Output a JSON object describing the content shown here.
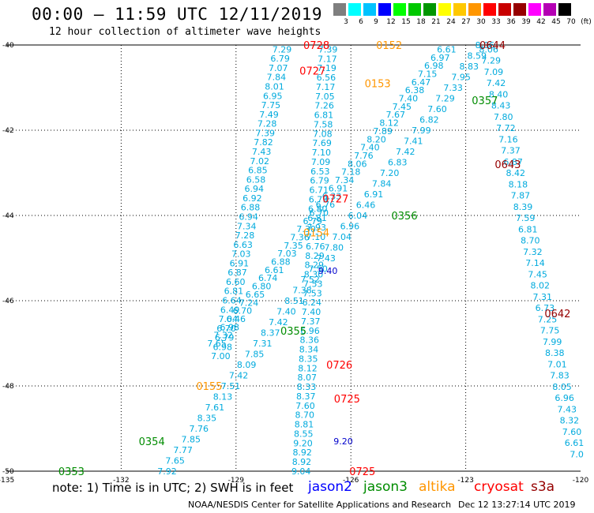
{
  "title": "00:00 – 11:59 UTC 12/11/2019",
  "subtitle": "12 hour collection of altimeter wave heights",
  "legend": {
    "labels": [
      "3",
      "6",
      "9",
      "12",
      "15",
      "18",
      "21",
      "24",
      "27",
      "30",
      "33",
      "36",
      "39",
      "42",
      "45",
      "70",
      "(ft)"
    ],
    "colors": [
      "#7f7f7f",
      "#00ffff",
      "#00c3ff",
      "#0000ff",
      "#00ff00",
      "#00c800",
      "#009600",
      "#ffff00",
      "#ffc800",
      "#ff9600",
      "#ff0000",
      "#c80000",
      "#960000",
      "#ff00ff",
      "#b400b4",
      "#000000"
    ]
  },
  "note": "note: 1) Time is in UTC; 2) SWH is in feet",
  "satellites": [
    {
      "name": "jason2",
      "color": "#0000ff"
    },
    {
      "name": "jason3",
      "color": "#008c00"
    },
    {
      "name": "altika",
      "color": "#ff9600"
    },
    {
      "name": "cryosat",
      "color": "#ff0000"
    },
    {
      "name": "s3a",
      "color": "#960000"
    }
  ],
  "credit": "NOAA/NESDIS Center for Satellite Applications and Research",
  "timestamp": "Dec 12 13:27:14 UTC 2019",
  "chart_data": {
    "type": "scatter",
    "title": "00:00 – 11:59 UTC 12/11/2019",
    "subtitle": "12 hour collection of altimeter wave heights",
    "xlim": [
      -135,
      -120
    ],
    "ylim": [
      -50,
      -40
    ],
    "x_ticks": [
      -135,
      -132,
      -129,
      -126,
      -123,
      -120
    ],
    "y_ticks": [
      -40,
      -42,
      -44,
      -46,
      -48,
      -50
    ],
    "grid": true,
    "units": "ft",
    "tracks": [
      {
        "satellite": "cryosat",
        "color": "#00aadd",
        "start": [
          -127.8,
          -40.1
        ],
        "end": [
          -129.4,
          -47.3
        ],
        "values": [
          "7.29",
          "6.79",
          "7.07",
          "7.84",
          "8.01",
          "6.95",
          "7.75",
          "7.49",
          "7.28",
          "7.39",
          "7.82",
          "7.43",
          "7.02",
          "6.85",
          "6.58",
          "6.94",
          "6.92",
          "6.88",
          "6.94",
          "7.34",
          "7.28",
          "6.63",
          "7.03",
          "6.91",
          "6.87",
          "6.60",
          "6.81",
          "6.64",
          "6.49",
          "7.04",
          "6.70",
          "6.79",
          "6.98",
          "7.00"
        ]
      },
      {
        "satellite": "altika",
        "color": "#00aadd",
        "start": [
          -126.6,
          -40.1
        ],
        "end": [
          -127.3,
          -50.0
        ],
        "values": [
          "7.39",
          "7.17",
          "7.19",
          "6.56",
          "7.17",
          "7.05",
          "7.26",
          "6.81",
          "7.58",
          "7.08",
          "7.69",
          "7.10",
          "7.09",
          "6.53",
          "6.79",
          "6.71",
          "6.79",
          "6.80",
          "6.81",
          "7.93",
          "7.10",
          "6.76",
          "8.29",
          "8.29",
          "8.30",
          "7.53",
          "7.53",
          "6.24",
          "7.40",
          "7.37",
          "6.96",
          "8.36",
          "8.34",
          "8.35",
          "8.12",
          "8.07",
          "8.33",
          "8.37",
          "7.60",
          "8.70",
          "8.81",
          "8.55",
          "9.20",
          "8.92",
          "8.92",
          "9.04"
        ]
      },
      {
        "satellite": "s3a",
        "color": "#00aadd",
        "start": [
          -123.5,
          -40.1
        ],
        "end": [
          -129.5,
          -47.0
        ],
        "values": [
          "6.61",
          "6.97",
          "6.98",
          "7.15",
          "6.47",
          "6.38",
          "7.40",
          "7.45",
          "7.67",
          "8.12",
          "7.89",
          "8.20",
          "7.40",
          "7.76",
          "8.06",
          "7.18",
          "7.34",
          "6.91",
          "6.33",
          "6.76",
          "6.70",
          "6.79",
          "7.30",
          "7.36",
          "7.35",
          "7.03",
          "6.88",
          "6.61",
          "6.74",
          "6.80",
          "6.65",
          "7.24",
          "6.70",
          "6.46",
          "6.98",
          "7.32",
          "7.65"
        ]
      },
      {
        "satellite": "s3a",
        "color": "#00aadd",
        "start": [
          -122.5,
          -40.0
        ],
        "end": [
          -130.8,
          -50.0
        ],
        "values": [
          "8.06",
          "8.59",
          "8.83",
          "7.95",
          "7.33",
          "7.29",
          "7.60",
          "6.82",
          "7.99",
          "7.41",
          "7.42",
          "6.83",
          "7.20",
          "7.84",
          "6.91",
          "6.46",
          "6.04",
          "6.96",
          "7.04",
          "7.80",
          "7.43",
          "7.50",
          "7.52",
          "7.38",
          "8.51",
          "7.40",
          "7.42",
          "8.37",
          "7.31",
          "7.85",
          "8.09",
          "7.42",
          "7.51",
          "8.13",
          "7.61",
          "8.35",
          "7.76",
          "7.85",
          "7.77",
          "7.65",
          "7.92"
        ]
      },
      {
        "satellite": "cryosat",
        "color": "#00aadd",
        "start": [
          -122.4,
          -40.1
        ],
        "end": [
          -120.1,
          -49.6
        ],
        "values": [
          "8.06",
          "7.29",
          "7.09",
          "7.42",
          "8.40",
          "8.43",
          "7.80",
          "7.72",
          "7.16",
          "7.37",
          "6.87",
          "8.42",
          "8.18",
          "7.87",
          "8.39",
          "7.59",
          "6.81",
          "8.70",
          "7.32",
          "7.14",
          "7.45",
          "8.02",
          "7.31",
          "6.73",
          "7.25",
          "7.75",
          "7.99",
          "8.38",
          "7.01",
          "7.83",
          "8.05",
          "6.96",
          "7.43",
          "8.32",
          "7.60",
          "6.61",
          "7.0"
        ]
      },
      {
        "satellite": "jason2",
        "color": "#0000cc",
        "start": [
          -126.6,
          -45.3
        ],
        "end": [
          -126.2,
          -49.3
        ],
        "values": [
          "9.40",
          "9.20"
        ]
      }
    ],
    "time_labels": [
      {
        "text": "0728",
        "color": "#ff0000",
        "lon": -126.9,
        "lat": -40.0
      },
      {
        "text": "0152",
        "color": "#ff9600",
        "lon": -125.0,
        "lat": -40.0
      },
      {
        "text": "0644",
        "color": "#960000",
        "lon": -122.3,
        "lat": -40.0
      },
      {
        "text": "0727",
        "color": "#ff0000",
        "lon": -127.0,
        "lat": -40.6
      },
      {
        "text": "0153",
        "color": "#ff9600",
        "lon": -125.3,
        "lat": -40.9
      },
      {
        "text": "0357",
        "color": "#008c00",
        "lon": -122.5,
        "lat": -41.3
      },
      {
        "text": "0643",
        "color": "#960000",
        "lon": -121.9,
        "lat": -42.8
      },
      {
        "text": "0727",
        "color": "#ff0000",
        "lon": -126.4,
        "lat": -43.6
      },
      {
        "text": "0356",
        "color": "#008c00",
        "lon": -124.6,
        "lat": -44.0
      },
      {
        "text": "0154",
        "color": "#ff9600",
        "lon": -126.9,
        "lat": -44.4
      },
      {
        "text": "0642",
        "color": "#960000",
        "lon": -120.6,
        "lat": -46.3
      },
      {
        "text": "0355",
        "color": "#008c00",
        "lon": -127.5,
        "lat": -46.7
      },
      {
        "text": "0726",
        "color": "#ff0000",
        "lon": -126.3,
        "lat": -47.5
      },
      {
        "text": "0155",
        "color": "#ff9600",
        "lon": -129.7,
        "lat": -48.0
      },
      {
        "text": "0725",
        "color": "#ff0000",
        "lon": -126.1,
        "lat": -48.3
      },
      {
        "text": "0354",
        "color": "#008c00",
        "lon": -131.2,
        "lat": -49.3
      },
      {
        "text": "0353",
        "color": "#008c00",
        "lon": -133.3,
        "lat": -50.0
      },
      {
        "text": "0725",
        "color": "#ff0000",
        "lon": -125.7,
        "lat": -50.0
      }
    ]
  }
}
